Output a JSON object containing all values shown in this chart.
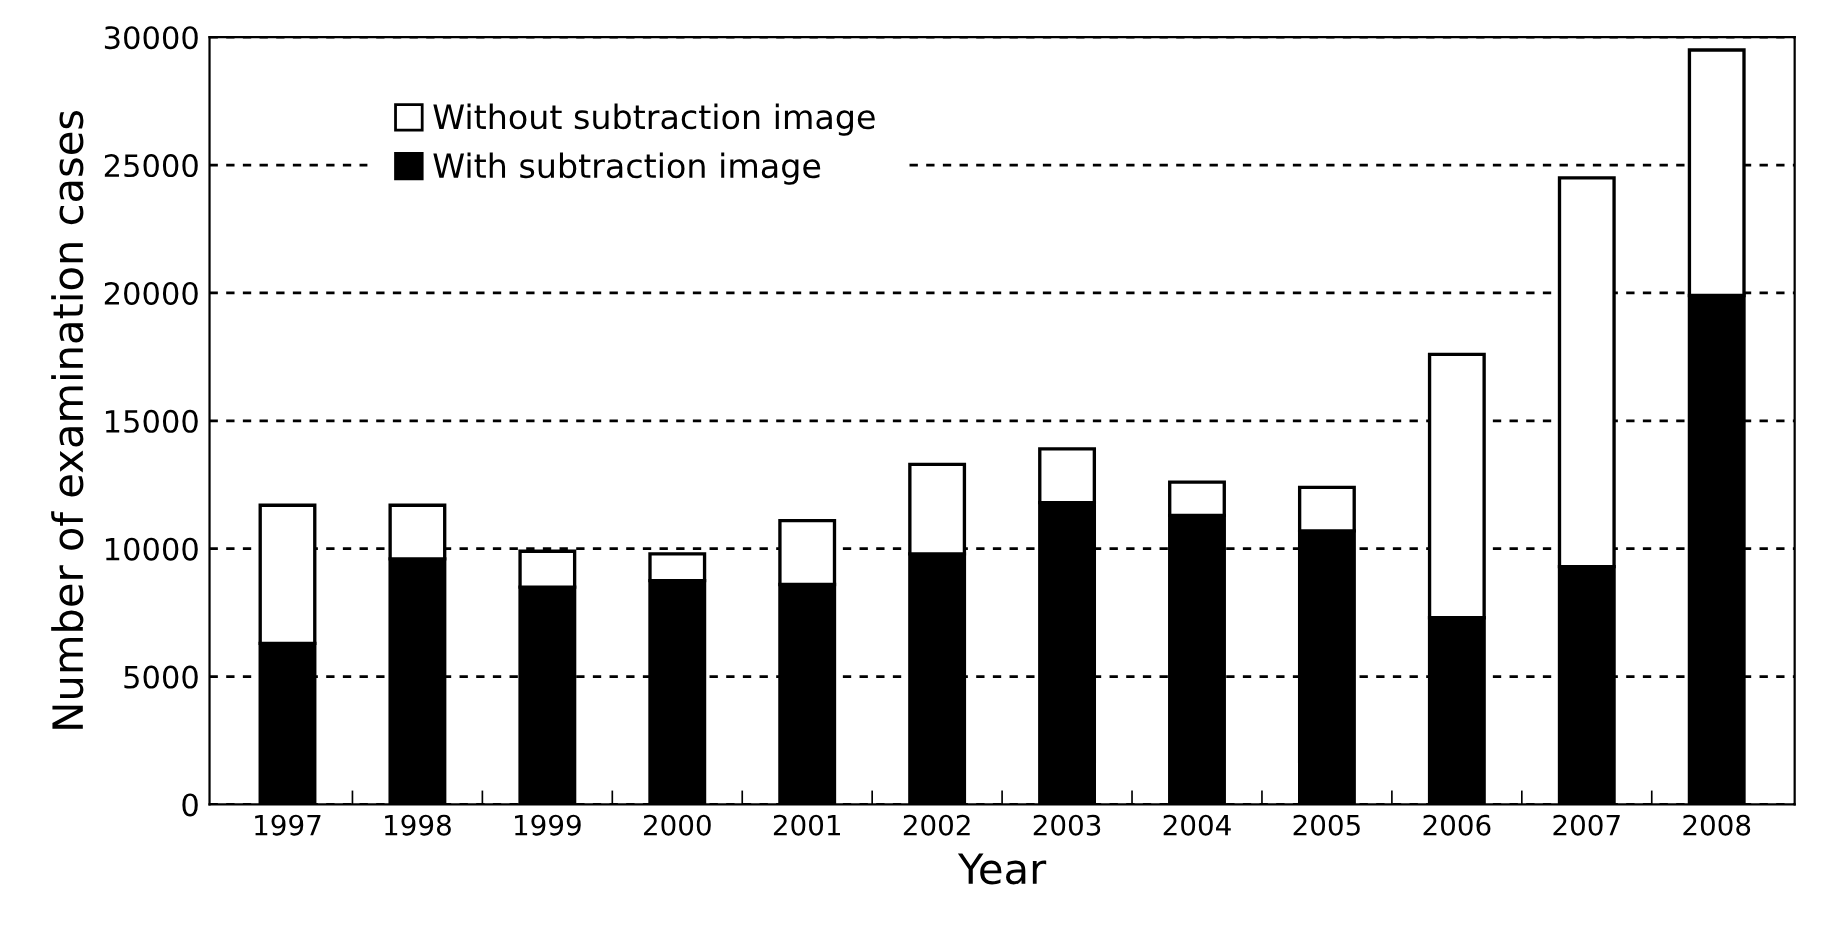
{
  "chart_data": {
    "type": "bar",
    "stacked": true,
    "xlabel": "Year",
    "ylabel": "Number of examination cases",
    "categories": [
      "1997",
      "1998",
      "1999",
      "2000",
      "2001",
      "2002",
      "2003",
      "2004",
      "2005",
      "2006",
      "2007",
      "2008"
    ],
    "series": [
      {
        "name": "With subtraction image",
        "color": "#000000",
        "values": [
          6300,
          9600,
          8500,
          8750,
          8600,
          9800,
          11800,
          11300,
          10700,
          7300,
          9300,
          19900
        ]
      },
      {
        "name": "Without subtraction image",
        "color": "#ffffff",
        "values": [
          5400,
          2100,
          1400,
          1050,
          2500,
          3500,
          2100,
          1300,
          1700,
          10300,
          15200,
          9600
        ]
      }
    ],
    "ylim": [
      0,
      30000
    ],
    "yticks": [
      0,
      5000,
      10000,
      15000,
      20000,
      25000,
      30000
    ],
    "grid": "y",
    "legend": "top left"
  }
}
